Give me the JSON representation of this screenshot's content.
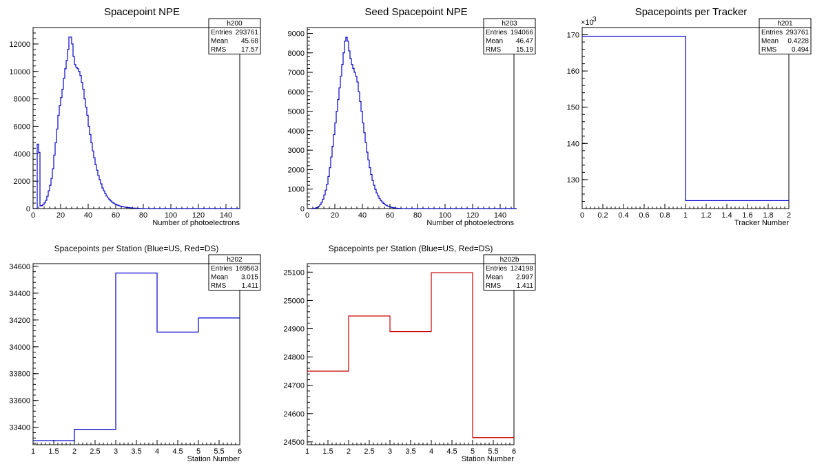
{
  "chart_data": [
    {
      "type": "bar",
      "title": "Spacepoint NPE",
      "xlabel": "Number of photoelectrons",
      "ylabel": "",
      "xlim": [
        0,
        150
      ],
      "ylim": [
        0,
        13200
      ],
      "xticks": [
        0,
        20,
        40,
        60,
        80,
        100,
        120,
        140
      ],
      "yticks": [
        0,
        2000,
        4000,
        6000,
        8000,
        10000,
        12000
      ],
      "exponent_label": "",
      "color": "#0000cc",
      "stats": {
        "name": "h200",
        "rows": [
          {
            "label": "Entries",
            "value": "293761"
          },
          {
            "label": "Mean",
            "value": "45.68"
          },
          {
            "label": "RMS",
            "value": "17.57"
          }
        ]
      },
      "bin_edges_start": 0,
      "bin_width": 1,
      "values": [
        0,
        0,
        0,
        4700,
        4100,
        200,
        220,
        300,
        420,
        600,
        900,
        1300,
        1700,
        2200,
        2900,
        3900,
        4800,
        5800,
        6800,
        7500,
        8100,
        8700,
        9500,
        10200,
        10800,
        11600,
        12500,
        12500,
        12000,
        11100,
        10500,
        10300,
        10200,
        10000,
        9700,
        9200,
        8700,
        8000,
        7400,
        6800,
        6000,
        5400,
        4800,
        4200,
        3700,
        3200,
        2800,
        2400,
        2100,
        1800,
        1500,
        1300,
        1100,
        920,
        780,
        660,
        560,
        470,
        400,
        340,
        290,
        250,
        210,
        180,
        150,
        130,
        110,
        95,
        80,
        70,
        60,
        50,
        40,
        35,
        30,
        25,
        20,
        15,
        10,
        8,
        5,
        4,
        3,
        2,
        1,
        1,
        0,
        0,
        0,
        0,
        0,
        0,
        0,
        0,
        0,
        0,
        0,
        0,
        0,
        0,
        0,
        0,
        0,
        0,
        0,
        0,
        0,
        0,
        0,
        0,
        0,
        0,
        0,
        0,
        0,
        0,
        0,
        0,
        0,
        0,
        0,
        0,
        0,
        0,
        0,
        0,
        0,
        0,
        0,
        0,
        0,
        0,
        0,
        0,
        0,
        0,
        0,
        0,
        0,
        0,
        0,
        0,
        0,
        0,
        0,
        0,
        0,
        0,
        0,
        0
      ]
    },
    {
      "type": "bar",
      "title": "Seed Spacepoint NPE",
      "xlabel": "Number of photoelectrons",
      "ylabel": "",
      "xlim": [
        0,
        150
      ],
      "ylim": [
        0,
        9300
      ],
      "xticks": [
        0,
        20,
        40,
        60,
        80,
        100,
        120,
        140
      ],
      "yticks": [
        0,
        1000,
        2000,
        3000,
        4000,
        5000,
        6000,
        7000,
        8000,
        9000
      ],
      "exponent_label": "",
      "color": "#0000cc",
      "stats": {
        "name": "h203",
        "rows": [
          {
            "label": "Entries",
            "value": "194066"
          },
          {
            "label": "Mean",
            "value": "46.47"
          },
          {
            "label": "RMS",
            "value": "15.19"
          }
        ]
      },
      "bin_edges_start": 0,
      "bin_width": 1,
      "values": [
        0,
        0,
        0,
        0,
        0,
        20,
        40,
        60,
        120,
        200,
        320,
        480,
        700,
        950,
        1250,
        1650,
        2100,
        2650,
        3200,
        3800,
        4400,
        5000,
        5600,
        6200,
        6800,
        7400,
        8000,
        8600,
        8800,
        8600,
        8100,
        7700,
        7400,
        7200,
        7000,
        6800,
        6500,
        6000,
        5500,
        5000,
        4400,
        3900,
        3400,
        2900,
        2500,
        2100,
        1750,
        1450,
        1200,
        980,
        800,
        650,
        520,
        420,
        340,
        270,
        210,
        170,
        130,
        100,
        80,
        60,
        45,
        35,
        25,
        18,
        12,
        8,
        5,
        3,
        2,
        1,
        1,
        0,
        0,
        0,
        0,
        0,
        0,
        0,
        0,
        0,
        0,
        0,
        0,
        0,
        0,
        0,
        0,
        0,
        0,
        0,
        0,
        0,
        0,
        0,
        0,
        0,
        0,
        0,
        0,
        0,
        0,
        0,
        0,
        0,
        0,
        0,
        0,
        0,
        0,
        0,
        0,
        0,
        0,
        0,
        0,
        0,
        0,
        0,
        0,
        0,
        0,
        0,
        0,
        0,
        0,
        0,
        0,
        0,
        0,
        0,
        0,
        0,
        0,
        0,
        0,
        0,
        0,
        0,
        0,
        0,
        0,
        0,
        0,
        0,
        0,
        0,
        0,
        0,
        0,
        0
      ]
    },
    {
      "type": "bar",
      "title": "Spacepoints per Tracker",
      "xlabel": "Tracker Number",
      "ylabel": "",
      "xlim": [
        0,
        2
      ],
      "ylim": [
        122000,
        172000
      ],
      "xticks": [
        0,
        0.2,
        0.4,
        0.6,
        0.8,
        1,
        1.2,
        1.4,
        1.6,
        1.8,
        2
      ],
      "yticks": [
        130000,
        140000,
        150000,
        160000,
        170000
      ],
      "ytick_scale": 1000,
      "exponent_label": "×10",
      "exponent_power": "3",
      "color": "#0000cc",
      "stats": {
        "name": "h201",
        "rows": [
          {
            "label": "Entries",
            "value": "293761"
          },
          {
            "label": "Mean",
            "value": "0.4228"
          },
          {
            "label": "RMS",
            "value": "0.494"
          }
        ]
      },
      "bin_edges_start": 0,
      "bin_width": 1,
      "values": [
        169600,
        124200
      ]
    },
    {
      "type": "bar",
      "title": "Spacepoints per Station (Blue=US, Red=DS)",
      "xlabel": "Station Number",
      "ylabel": "",
      "xlim": [
        1,
        6
      ],
      "ylim": [
        33270,
        34620
      ],
      "xticks": [
        1,
        1.5,
        2,
        2.5,
        3,
        3.5,
        4,
        4.5,
        5,
        5.5,
        6
      ],
      "yticks": [
        33400,
        33600,
        33800,
        34000,
        34200,
        34400,
        34600
      ],
      "exponent_label": "",
      "color": "#0000cc",
      "stats": {
        "name": "h202",
        "rows": [
          {
            "label": "Entries",
            "value": "169563"
          },
          {
            "label": "Mean",
            "value": "3.015"
          },
          {
            "label": "RMS",
            "value": "1.411"
          }
        ]
      },
      "bin_edges_start": 1,
      "bin_width": 1,
      "values": [
        33300,
        33385,
        34550,
        34110,
        34215
      ]
    },
    {
      "type": "bar",
      "title": "Spacepoints per Station (Blue=US, Red=DS)",
      "xlabel": "Station Number",
      "ylabel": "",
      "xlim": [
        1,
        6
      ],
      "ylim": [
        24490,
        25130
      ],
      "xticks": [
        1,
        1.5,
        2,
        2.5,
        3,
        3.5,
        4,
        4.5,
        5,
        5.5,
        6
      ],
      "yticks": [
        24500,
        24600,
        24700,
        24800,
        24900,
        25000,
        25100
      ],
      "exponent_label": "",
      "color": "#cc0000",
      "stats": {
        "name": "h202b",
        "rows": [
          {
            "label": "Entries",
            "value": "124198"
          },
          {
            "label": "Mean",
            "value": "2.997"
          },
          {
            "label": "RMS",
            "value": "1.411"
          }
        ]
      },
      "bin_edges_start": 1,
      "bin_width": 1,
      "values": [
        24750,
        24945,
        24890,
        25098,
        24515
      ]
    }
  ]
}
